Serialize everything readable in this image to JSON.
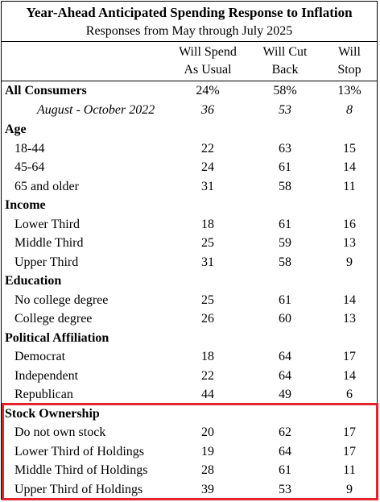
{
  "title": "Year-Ahead Anticipated Spending Response to Inflation",
  "subtitle": "Responses from May through July 2025",
  "columns": [
    {
      "line1": "Will Spend",
      "line2": "As Usual"
    },
    {
      "line1": "Will Cut",
      "line2": "Back"
    },
    {
      "line1": "Will",
      "line2": "Stop"
    }
  ],
  "all_consumers": {
    "label": "All Consumers",
    "values": [
      "24%",
      "58%",
      "13%"
    ]
  },
  "comparison": {
    "label": "August - October 2022",
    "values": [
      "36",
      "53",
      "8"
    ]
  },
  "sections": [
    {
      "heading": "Age",
      "rows": [
        {
          "label": "18-44",
          "values": [
            "22",
            "63",
            "15"
          ]
        },
        {
          "label": "45-64",
          "values": [
            "24",
            "61",
            "14"
          ]
        },
        {
          "label": "65 and older",
          "values": [
            "31",
            "58",
            "11"
          ]
        }
      ]
    },
    {
      "heading": "Income",
      "rows": [
        {
          "label": "Lower Third",
          "values": [
            "18",
            "61",
            "16"
          ]
        },
        {
          "label": "Middle Third",
          "values": [
            "25",
            "59",
            "13"
          ]
        },
        {
          "label": "Upper Third",
          "values": [
            "31",
            "58",
            "9"
          ]
        }
      ]
    },
    {
      "heading": "Education",
      "rows": [
        {
          "label": "No college degree",
          "values": [
            "25",
            "61",
            "14"
          ]
        },
        {
          "label": "College degree",
          "values": [
            "26",
            "60",
            "13"
          ]
        }
      ]
    },
    {
      "heading": "Political Affiliation",
      "rows": [
        {
          "label": "Democrat",
          "values": [
            "18",
            "64",
            "17"
          ]
        },
        {
          "label": "Independent",
          "values": [
            "22",
            "64",
            "14"
          ]
        },
        {
          "label": "Republican",
          "values": [
            "44",
            "49",
            "6"
          ]
        }
      ]
    },
    {
      "heading": "Stock Ownership",
      "rows": [
        {
          "label": "Do not own stock",
          "values": [
            "20",
            "62",
            "17"
          ]
        },
        {
          "label": "Lower Third of Holdings",
          "values": [
            "19",
            "64",
            "17"
          ]
        },
        {
          "label": "Middle Third of Holdings",
          "values": [
            "28",
            "61",
            "11"
          ]
        },
        {
          "label": "Upper Third of Holdings",
          "values": [
            "39",
            "53",
            "9"
          ]
        }
      ]
    }
  ],
  "highlight_color": "#e3242b"
}
